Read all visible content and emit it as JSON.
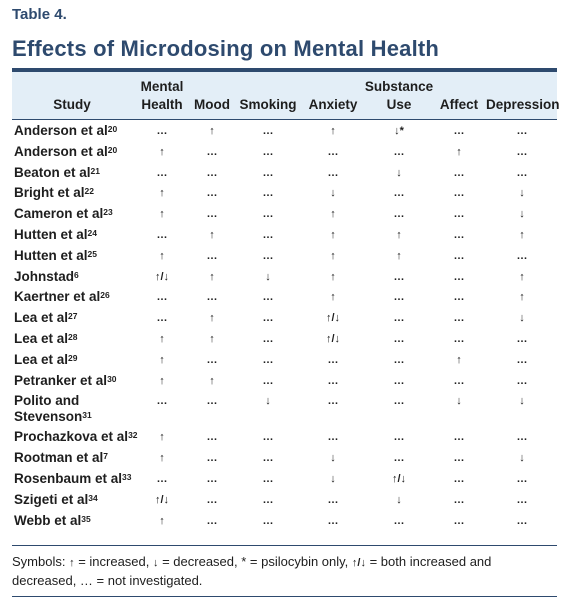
{
  "table_label": "Table 4.",
  "title": "Effects of Microdosing on Mental Health",
  "header": {
    "study": "Study",
    "mental_health_l1": "Mental",
    "mental_health_l2": "Health",
    "mood": "Mood",
    "smoking": "Smoking",
    "anxiety": "Anxiety",
    "substance_use_l1": "Substance",
    "substance_use_l2": "Use",
    "affect": "Affect",
    "depression": "Depression"
  },
  "rows": [
    {
      "study": "Anderson et al",
      "ref": "20",
      "cells": [
        "…",
        "↑",
        "…",
        "↑",
        "↓*",
        "…",
        "…"
      ]
    },
    {
      "study": "Anderson et al",
      "ref": "20",
      "cells": [
        "↑",
        "…",
        "…",
        "…",
        "…",
        "↑",
        "…"
      ]
    },
    {
      "study": "Beaton et al",
      "ref": "21",
      "cells": [
        "…",
        "…",
        "…",
        "…",
        "↓",
        "…",
        "…"
      ]
    },
    {
      "study": "Bright et al",
      "ref": "22",
      "cells": [
        "↑",
        "…",
        "…",
        "↓",
        "…",
        "…",
        "↓"
      ]
    },
    {
      "study": "Cameron et al",
      "ref": "23",
      "cells": [
        "↑",
        "…",
        "…",
        "↑",
        "…",
        "…",
        "↓"
      ]
    },
    {
      "study": "Hutten et al",
      "ref": "24",
      "cells": [
        "…",
        "↑",
        "…",
        "↑",
        "↑",
        "…",
        "↑"
      ]
    },
    {
      "study": "Hutten et al",
      "ref": "25",
      "cells": [
        "↑",
        "…",
        "…",
        "↑",
        "↑",
        "…",
        "…"
      ]
    },
    {
      "study": "Johnstad",
      "ref": "6",
      "cells": [
        "↑/↓",
        "↑",
        "↓",
        "↑",
        "…",
        "…",
        "↑"
      ]
    },
    {
      "study": "Kaertner et al",
      "ref": "26",
      "cells": [
        "…",
        "…",
        "…",
        "↑",
        "…",
        "…",
        "↑"
      ]
    },
    {
      "study": "Lea et al",
      "ref": "27",
      "cells": [
        "…",
        "↑",
        "…",
        "↑/↓",
        "…",
        "…",
        "↓"
      ]
    },
    {
      "study": "Lea et al",
      "ref": "28",
      "cells": [
        "↑",
        "↑",
        "…",
        "↑/↓",
        "…",
        "…",
        "…"
      ]
    },
    {
      "study": "Lea et al",
      "ref": "29",
      "cells": [
        "↑",
        "…",
        "…",
        "…",
        "…",
        "↑",
        "…"
      ]
    },
    {
      "study": "Petranker et al",
      "ref": "30",
      "cells": [
        "↑",
        "↑",
        "…",
        "…",
        "…",
        "…",
        "…"
      ]
    },
    {
      "study": "Polito and",
      "study2": "Stevenson",
      "ref": "31",
      "cells": [
        "…",
        "…",
        "↓",
        "…",
        "…",
        "↓",
        "↓"
      ]
    },
    {
      "study": "Prochazkova et al",
      "ref": "32",
      "cells": [
        "↑",
        "…",
        "…",
        "…",
        "…",
        "…",
        "…"
      ]
    },
    {
      "study": "Rootman et al",
      "ref": "7",
      "cells": [
        "↑",
        "…",
        "…",
        "↓",
        "…",
        "…",
        "↓"
      ]
    },
    {
      "study": "Rosenbaum et al",
      "ref": "33",
      "cells": [
        "…",
        "…",
        "…",
        "↓",
        "↑/↓",
        "…",
        "…"
      ]
    },
    {
      "study": "Szigeti et al",
      "ref": "34",
      "cells": [
        "↑/↓",
        "…",
        "…",
        "…",
        "↓",
        "…",
        "…"
      ]
    },
    {
      "study": "Webb et al",
      "ref": "35",
      "cells": [
        "↑",
        "…",
        "…",
        "…",
        "…",
        "…",
        "…"
      ]
    }
  ],
  "footnote": {
    "prefix": "Symbols: ",
    "up": "↑",
    "up_text": " = increased, ",
    "down": "↓",
    "down_text": " = decreased, * = psilocybin only, ",
    "both": "↑/↓",
    "both_text": " = both increased and decreased, … = not investigated."
  },
  "colors": {
    "brand": "#2e4a6e",
    "header_bg": "#e3eef7"
  }
}
